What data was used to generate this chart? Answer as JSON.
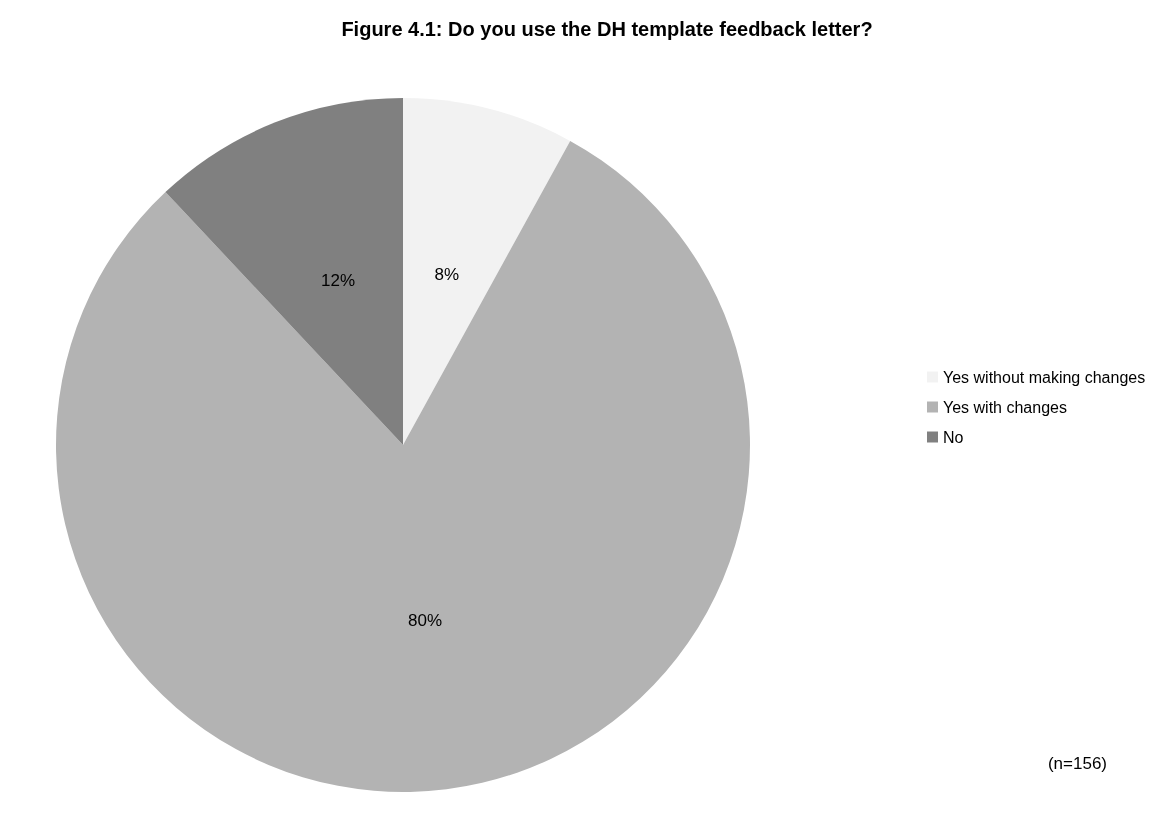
{
  "chart_data": {
    "type": "pie",
    "title": "Figure 4.1: Do you use the DH template feedback letter?",
    "categories": [
      "Yes without making changes",
      "Yes with changes",
      "No"
    ],
    "values": [
      8,
      80,
      12
    ],
    "value_labels": [
      "8%",
      "80%",
      "12%"
    ],
    "colors": [
      "#f2f2f2",
      "#b3b3b3",
      "#808080"
    ],
    "legend": "right",
    "annotations": [
      "(n=156)"
    ]
  }
}
